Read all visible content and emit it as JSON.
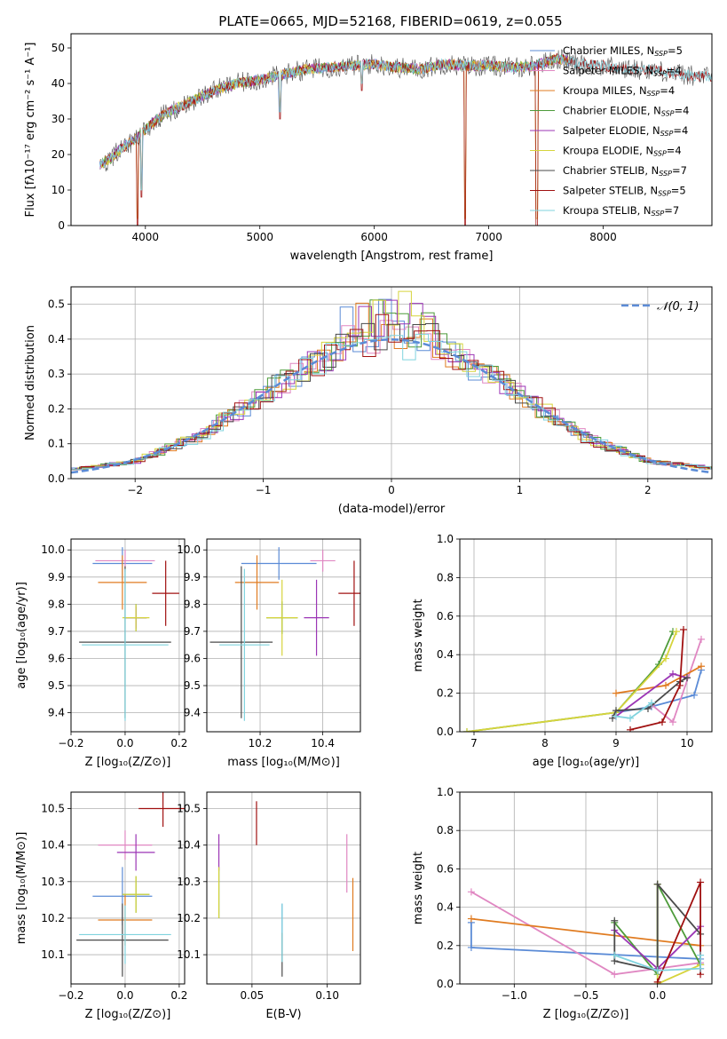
{
  "figure": {
    "title": "PLATE=0665, MJD=52168, FIBERID=0619, z=0.055"
  },
  "colors": {
    "models": [
      "#5b8bd6",
      "#e087c2",
      "#e07b20",
      "#4d9b3a",
      "#9b35b5",
      "#d6d43c",
      "#4a4a4a",
      "#a01010",
      "#7fd3de"
    ]
  },
  "chart_data": [
    {
      "id": "spectrum",
      "type": "line",
      "xlabel": "wavelength [Angstrom, rest frame]",
      "ylabel": "Flux [fλ10⁻¹⁷ erg cm⁻² s⁻¹ A⁻¹]",
      "xlim": [
        3350,
        8950
      ],
      "ylim": [
        0,
        54
      ],
      "xticks": [
        4000,
        5000,
        6000,
        7000,
        8000
      ],
      "yticks": [
        0,
        10,
        20,
        30,
        40,
        50
      ],
      "grid": false,
      "legend": "top-right",
      "legend_entries": [
        "Chabrier MILES, N_SSP=5",
        "Salpeter MILES, N_SSP=4",
        "Kroupa MILES, N_SSP=4",
        "Chabrier ELODIE, N_SSP=4",
        "Salpeter ELODIE, N_SSP=4",
        "Kroupa ELODIE, N_SSP=4",
        "Chabrier STELIB, N_SSP=7",
        "Salpeter STELIB, N_SSP=5",
        "Kroupa STELIB, N_SSP=7"
      ],
      "continuum": {
        "x": [
          3600,
          3700,
          3800,
          3900,
          4000,
          4100,
          4200,
          4400,
          4600,
          4800,
          5000,
          5200,
          5400,
          5600,
          5800,
          6000,
          6200,
          6400,
          6600,
          6800,
          7000,
          7200,
          7400,
          7600,
          7800,
          8000,
          8200,
          8400,
          8600,
          8800
        ],
        "y": [
          17,
          19,
          22,
          24,
          27,
          30,
          32,
          35,
          38,
          40,
          41,
          42.5,
          44,
          44.5,
          45,
          45.5,
          44.5,
          44,
          45.5,
          45,
          45,
          44.5,
          45,
          47,
          45.5,
          45,
          44,
          44,
          43,
          42
        ]
      },
      "dips": [
        {
          "x": 3930,
          "y": 0
        },
        {
          "x": 3965,
          "y": 8
        },
        {
          "x": 6795,
          "y": 0
        },
        {
          "x": 7420,
          "y": 0
        },
        {
          "x": 5890,
          "y": 38
        },
        {
          "x": 5175,
          "y": 30
        }
      ]
    },
    {
      "id": "residuals",
      "type": "histogram",
      "xlabel": "(data-model)/error",
      "ylabel": "Normed distribution",
      "xlim": [
        -2.5,
        2.5
      ],
      "ylim": [
        0,
        0.55
      ],
      "xticks": [
        -2,
        -1,
        0,
        1,
        2
      ],
      "yticks": [
        0,
        0.1,
        0.2,
        0.3,
        0.4,
        0.5
      ],
      "grid": true,
      "legend": "top-right",
      "legend_entries": [
        "𝒩(0, 1)"
      ],
      "bin_width": 0.1,
      "shape": {
        "x": [
          -2.5,
          -2.0,
          -1.5,
          -1.0,
          -0.5,
          -0.3,
          0.0,
          0.3,
          0.5,
          1.0,
          1.5,
          2.0,
          2.5
        ],
        "y": [
          0.025,
          0.05,
          0.12,
          0.24,
          0.35,
          0.41,
          0.43,
          0.4,
          0.35,
          0.24,
          0.12,
          0.05,
          0.03
        ]
      }
    },
    {
      "id": "age-vs-z",
      "type": "errorbar",
      "xlabel": "Z [log₁₀(Z/Z⊙)]",
      "ylabel": "age  [log₁₀(age/yr)]",
      "xlim": [
        -0.2,
        0.22
      ],
      "ylim": [
        9.33,
        10.04
      ],
      "xticks": [
        -0.2,
        0.0,
        0.2
      ],
      "yticks": [
        9.4,
        9.5,
        9.6,
        9.7,
        9.8,
        9.9,
        10.0
      ],
      "grid": true,
      "points": [
        {
          "x": -0.01,
          "xerr": 0.11,
          "y": 9.95,
          "yerr": 0.06,
          "c": 0
        },
        {
          "x": 0.0,
          "xerr": 0.11,
          "y": 9.96,
          "yerr": 0.04,
          "c": 1
        },
        {
          "x": -0.01,
          "xerr": 0.09,
          "y": 9.88,
          "yerr": 0.1,
          "c": 2
        },
        {
          "x": 0.04,
          "xerr": 0.04,
          "y": 9.75,
          "yerr": 0.05,
          "c": 3
        },
        {
          "x": 0.04,
          "xerr": 0.04,
          "y": 9.75,
          "yerr": 0.04,
          "c": 4
        },
        {
          "x": 0.04,
          "xerr": 0.05,
          "y": 9.75,
          "yerr": 0.05,
          "c": 5
        },
        {
          "x": 0.0,
          "xerr": 0.17,
          "y": 9.66,
          "yerr": 0.28,
          "c": 6
        },
        {
          "x": 0.15,
          "xerr": 0.05,
          "y": 9.84,
          "yerr": 0.12,
          "c": 7
        },
        {
          "x": 0.0,
          "xerr": 0.16,
          "y": 9.65,
          "yerr": 0.28,
          "c": 8
        }
      ]
    },
    {
      "id": "age-vs-mass",
      "type": "errorbar",
      "xlabel": "mass [log₁₀(M/M⊙)]",
      "ylabel": "",
      "xlim": [
        10.03,
        10.52
      ],
      "ylim": [
        9.33,
        10.04
      ],
      "xticks": [
        10.2,
        10.4
      ],
      "yticks": [
        9.4,
        9.5,
        9.6,
        9.7,
        9.8,
        9.9,
        10.0
      ],
      "grid": true,
      "points": [
        {
          "x": 10.26,
          "xerr": 0.12,
          "y": 9.95,
          "yerr": 0.06,
          "c": 0
        },
        {
          "x": 10.4,
          "xerr": 0.04,
          "y": 9.96,
          "yerr": 0.04,
          "c": 1
        },
        {
          "x": 10.19,
          "xerr": 0.07,
          "y": 9.88,
          "yerr": 0.1,
          "c": 2
        },
        {
          "x": 10.27,
          "xerr": 0.05,
          "y": 9.75,
          "yerr": 0.06,
          "c": 3
        },
        {
          "x": 10.38,
          "xerr": 0.04,
          "y": 9.75,
          "yerr": 0.14,
          "c": 4
        },
        {
          "x": 10.27,
          "xerr": 0.05,
          "y": 9.75,
          "yerr": 0.14,
          "c": 5
        },
        {
          "x": 10.14,
          "xerr": 0.1,
          "y": 9.66,
          "yerr": 0.28,
          "c": 6
        },
        {
          "x": 10.5,
          "xerr": 0.05,
          "y": 9.84,
          "yerr": 0.12,
          "c": 7
        },
        {
          "x": 10.15,
          "xerr": 0.08,
          "y": 9.65,
          "yerr": 0.28,
          "c": 8
        }
      ]
    },
    {
      "id": "weight-vs-age",
      "type": "line",
      "xlabel": "age  [log₁₀(age/yr)]",
      "ylabel": "mass weight",
      "xlim": [
        6.8,
        10.35
      ],
      "ylim": [
        0,
        1.0
      ],
      "xticks": [
        7,
        8,
        9,
        10
      ],
      "yticks": [
        0.0,
        0.2,
        0.4,
        0.6,
        0.8,
        1.0
      ],
      "grid": true,
      "series": [
        {
          "c": 0,
          "x": [
            9.0,
            9.5,
            10.1,
            10.2
          ],
          "y": [
            0.1,
            0.13,
            0.19,
            0.32
          ]
        },
        {
          "c": 1,
          "x": [
            9.5,
            9.8,
            10.2
          ],
          "y": [
            0.14,
            0.05,
            0.48
          ]
        },
        {
          "c": 2,
          "x": [
            9.0,
            9.7,
            10.2
          ],
          "y": [
            0.2,
            0.24,
            0.34
          ]
        },
        {
          "c": 3,
          "x": [
            6.9,
            9.0,
            9.6,
            9.8
          ],
          "y": [
            0.0,
            0.1,
            0.35,
            0.52
          ]
        },
        {
          "c": 4,
          "x": [
            9.0,
            9.8,
            10.0
          ],
          "y": [
            0.08,
            0.3,
            0.28
          ]
        },
        {
          "c": 5,
          "x": [
            6.9,
            9.0,
            9.7,
            9.85
          ],
          "y": [
            0.0,
            0.1,
            0.38,
            0.52
          ]
        },
        {
          "c": 6,
          "x": [
            8.95,
            9.0,
            9.45,
            9.9,
            10.0
          ],
          "y": [
            0.07,
            0.11,
            0.12,
            0.26,
            0.28
          ]
        },
        {
          "c": 7,
          "x": [
            9.2,
            9.65,
            9.9,
            9.95
          ],
          "y": [
            0.01,
            0.05,
            0.24,
            0.53
          ]
        },
        {
          "c": 8,
          "x": [
            9.0,
            9.2,
            9.5
          ],
          "y": [
            0.08,
            0.07,
            0.15
          ]
        }
      ]
    },
    {
      "id": "mass-vs-z",
      "type": "errorbar",
      "xlabel": "Z [log₁₀(Z/Z⊙)]",
      "ylabel": "mass [log₁₀(M/M⊙)]",
      "xlim": [
        -0.2,
        0.22
      ],
      "ylim": [
        10.02,
        10.545
      ],
      "xticks": [
        -0.2,
        0.0,
        0.2
      ],
      "yticks": [
        10.1,
        10.2,
        10.3,
        10.4,
        10.5
      ],
      "grid": true,
      "points": [
        {
          "x": -0.01,
          "xerr": 0.11,
          "y": 10.26,
          "yerr": 0.08,
          "c": 0
        },
        {
          "x": 0.0,
          "xerr": 0.1,
          "y": 10.4,
          "yerr": 0.04,
          "c": 1
        },
        {
          "x": 0.0,
          "xerr": 0.1,
          "y": 10.195,
          "yerr": 0.07,
          "c": 2
        },
        {
          "x": 0.04,
          "xerr": 0.05,
          "y": 10.265,
          "yerr": 0.05,
          "c": 3
        },
        {
          "x": 0.04,
          "xerr": 0.07,
          "y": 10.38,
          "yerr": 0.05,
          "c": 4
        },
        {
          "x": 0.04,
          "xerr": 0.05,
          "y": 10.265,
          "yerr": 0.05,
          "c": 5
        },
        {
          "x": -0.01,
          "xerr": 0.17,
          "y": 10.14,
          "yerr": 0.1,
          "c": 6
        },
        {
          "x": 0.14,
          "xerr": 0.09,
          "y": 10.5,
          "yerr": 0.05,
          "c": 7
        },
        {
          "x": 0.0,
          "xerr": 0.17,
          "y": 10.155,
          "yerr": 0.08,
          "c": 8
        }
      ]
    },
    {
      "id": "mass-vs-ebv",
      "type": "errorbar",
      "xlabel": "E(B-V)",
      "ylabel": "",
      "xlim": [
        0.02,
        0.122
      ],
      "ylim": [
        10.02,
        10.545
      ],
      "xticks": [
        0.05,
        0.1
      ],
      "yticks": [
        10.1,
        10.2,
        10.3,
        10.4,
        10.5
      ],
      "grid": true,
      "points": [
        {
          "x": 0.07,
          "xerr": 0.0,
          "y": 10.2,
          "yerr": 0.04,
          "c": 0
        },
        {
          "x": 0.113,
          "xerr": 0.0,
          "y": 10.35,
          "yerr": 0.08,
          "c": 1
        },
        {
          "x": 0.117,
          "xerr": 0.0,
          "y": 10.21,
          "yerr": 0.1,
          "c": 2
        },
        {
          "x": 0.028,
          "xerr": 0.0,
          "y": 10.27,
          "yerr": 0.07,
          "c": 3
        },
        {
          "x": 0.028,
          "xerr": 0.0,
          "y": 10.38,
          "yerr": 0.05,
          "c": 4
        },
        {
          "x": 0.028,
          "xerr": 0.0,
          "y": 10.27,
          "yerr": 0.07,
          "c": 5
        },
        {
          "x": 0.07,
          "xerr": 0.0,
          "y": 10.1,
          "yerr": 0.06,
          "c": 6
        },
        {
          "x": 0.053,
          "xerr": 0.0,
          "y": 10.46,
          "yerr": 0.06,
          "c": 7
        },
        {
          "x": 0.07,
          "xerr": 0.0,
          "y": 10.16,
          "yerr": 0.08,
          "c": 8
        }
      ]
    },
    {
      "id": "weight-vs-z",
      "type": "line",
      "xlabel": "Z [log₁₀(Z/Z⊙)]",
      "ylabel": "mass weight",
      "xlim": [
        -1.38,
        0.38
      ],
      "ylim": [
        0,
        1.0
      ],
      "xticks": [
        -1.0,
        -0.5,
        0.0
      ],
      "yticks": [
        0.0,
        0.2,
        0.4,
        0.6,
        0.8,
        1.0
      ],
      "grid": true,
      "series": [
        {
          "c": 0,
          "x": [
            -1.3,
            -1.3,
            0.3,
            0.3
          ],
          "y": [
            0.32,
            0.19,
            0.13,
            0.1
          ]
        },
        {
          "c": 1,
          "x": [
            -1.3,
            -0.3,
            0.3
          ],
          "y": [
            0.48,
            0.05,
            0.11
          ]
        },
        {
          "c": 2,
          "x": [
            -1.3,
            0.3
          ],
          "y": [
            0.34,
            0.2
          ]
        },
        {
          "c": 3,
          "x": [
            -0.3,
            0.0,
            0.0,
            0.3
          ],
          "y": [
            0.32,
            0.05,
            0.52,
            0.1
          ]
        },
        {
          "c": 4,
          "x": [
            -0.3,
            0.0,
            0.3,
            0.3
          ],
          "y": [
            0.28,
            0.08,
            0.3,
            0.08
          ]
        },
        {
          "c": 5,
          "x": [
            0.0,
            0.0,
            0.3
          ],
          "y": [
            0.52,
            0.0,
            0.1
          ]
        },
        {
          "c": 6,
          "x": [
            -0.3,
            -0.3,
            0.0,
            0.0,
            0.3
          ],
          "y": [
            0.33,
            0.12,
            0.07,
            0.52,
            0.26
          ]
        },
        {
          "c": 7,
          "x": [
            0.0,
            0.3,
            0.3
          ],
          "y": [
            0.01,
            0.53,
            0.05
          ]
        },
        {
          "c": 8,
          "x": [
            -0.3,
            0.0,
            0.3,
            0.3
          ],
          "y": [
            0.15,
            0.07,
            0.08,
            0.15
          ]
        }
      ]
    }
  ]
}
